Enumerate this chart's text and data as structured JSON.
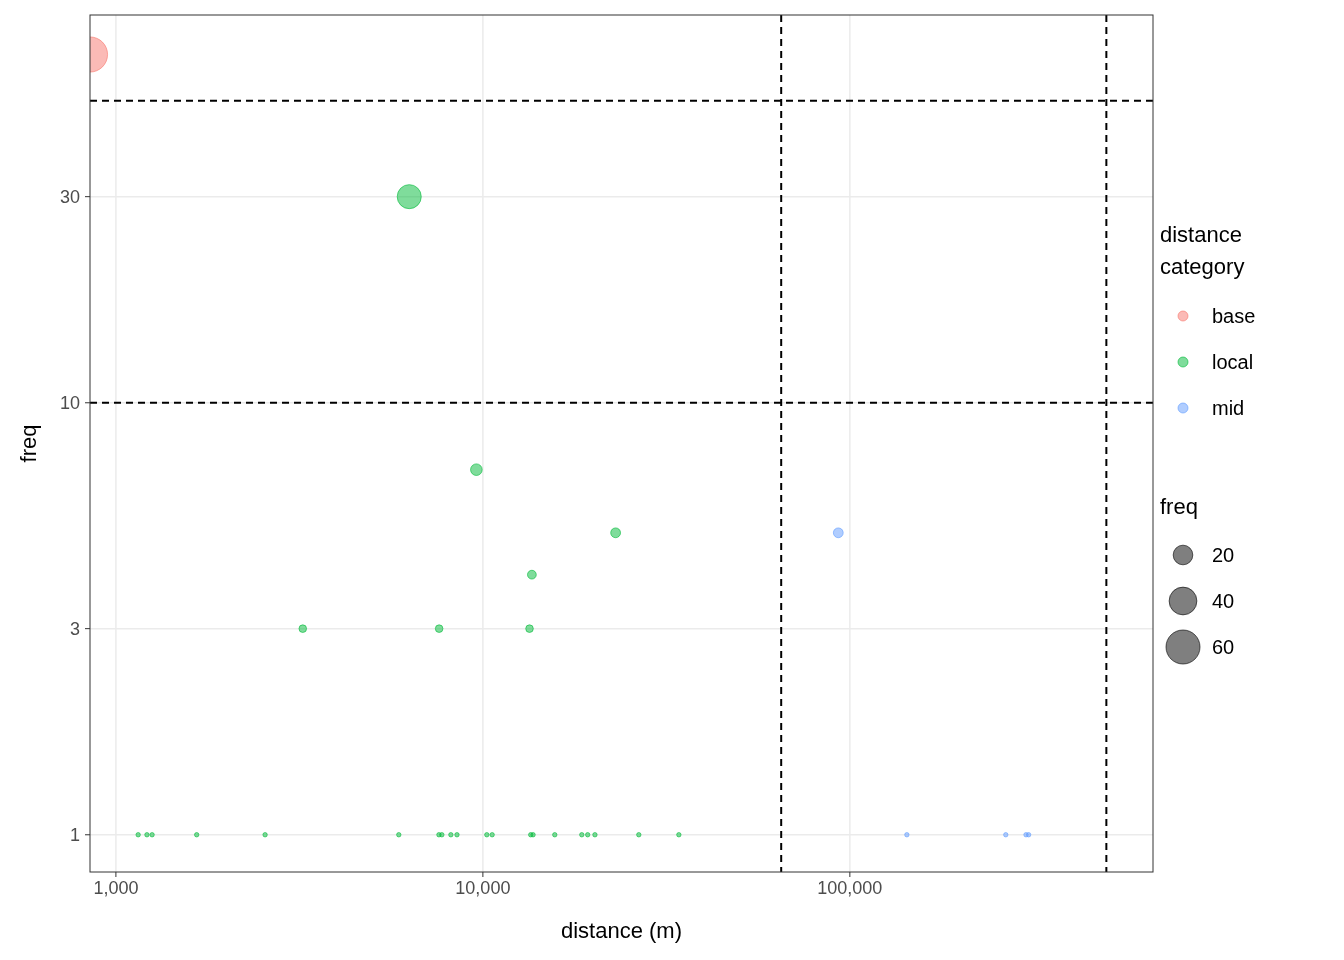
{
  "chart_data": {
    "type": "bubble",
    "xlabel": "distance (m)",
    "ylabel": "freq",
    "legend_title": "distance category",
    "annotations": [
      "freq"
    ],
    "log": "xy",
    "grid": true,
    "legend": "right",
    "xlim": [
      850,
      670000
    ],
    "ylim": [
      0.82,
      79
    ],
    "xticks": [
      {
        "value": 1000,
        "label": "1,000"
      },
      {
        "value": 10000,
        "label": "10,000"
      },
      {
        "value": 100000,
        "label": "100,000"
      }
    ],
    "yticks": [
      1,
      3,
      10,
      30
    ],
    "size_legend": [
      20,
      40,
      60
    ],
    "ref_lines": [
      {
        "axis": "x",
        "value": 65000,
        "line_style": "dashed",
        "color": "#000000"
      },
      {
        "axis": "x",
        "value": 500000,
        "line_style": "dashed",
        "color": "#000000"
      },
      {
        "axis": "y",
        "value": 10,
        "line_style": "dashed",
        "color": "#000000"
      },
      {
        "axis": "y",
        "value": 50,
        "line_style": "dashed",
        "color": "#000000"
      }
    ],
    "series": [
      {
        "name": "base",
        "color": "#f8766d",
        "x": [
          850
        ],
        "values": [
          64
        ],
        "sizes": [
          64
        ]
      },
      {
        "name": "local",
        "color": "#00ba38",
        "x": [
          6300,
          9600,
          23000,
          13600,
          3230,
          7600,
          13400,
          1150,
          1215,
          1255,
          1660,
          2550,
          5900,
          7590,
          7730,
          8180,
          8500,
          10250,
          10600,
          13500,
          13700,
          15700,
          18600,
          19300,
          20200,
          26600,
          34200
        ],
        "values": [
          30,
          7,
          5,
          4,
          3,
          3,
          3,
          1,
          1,
          1,
          1,
          1,
          1,
          1,
          1,
          1,
          1,
          1,
          1,
          1,
          1,
          1,
          1,
          1,
          1,
          1,
          1
        ],
        "sizes": [
          30,
          7,
          5,
          4,
          3,
          3,
          3,
          1,
          1,
          1,
          1,
          1,
          1,
          1,
          1,
          1,
          1,
          1,
          1,
          1,
          1,
          1,
          1,
          1,
          1,
          1,
          1
        ]
      },
      {
        "name": "mid",
        "color": "#619cff",
        "x": [
          93000,
          143000,
          266000,
          302000,
          307000
        ],
        "values": [
          5,
          1,
          1,
          1,
          1
        ],
        "sizes": [
          5,
          1,
          1,
          1,
          1
        ]
      }
    ]
  }
}
